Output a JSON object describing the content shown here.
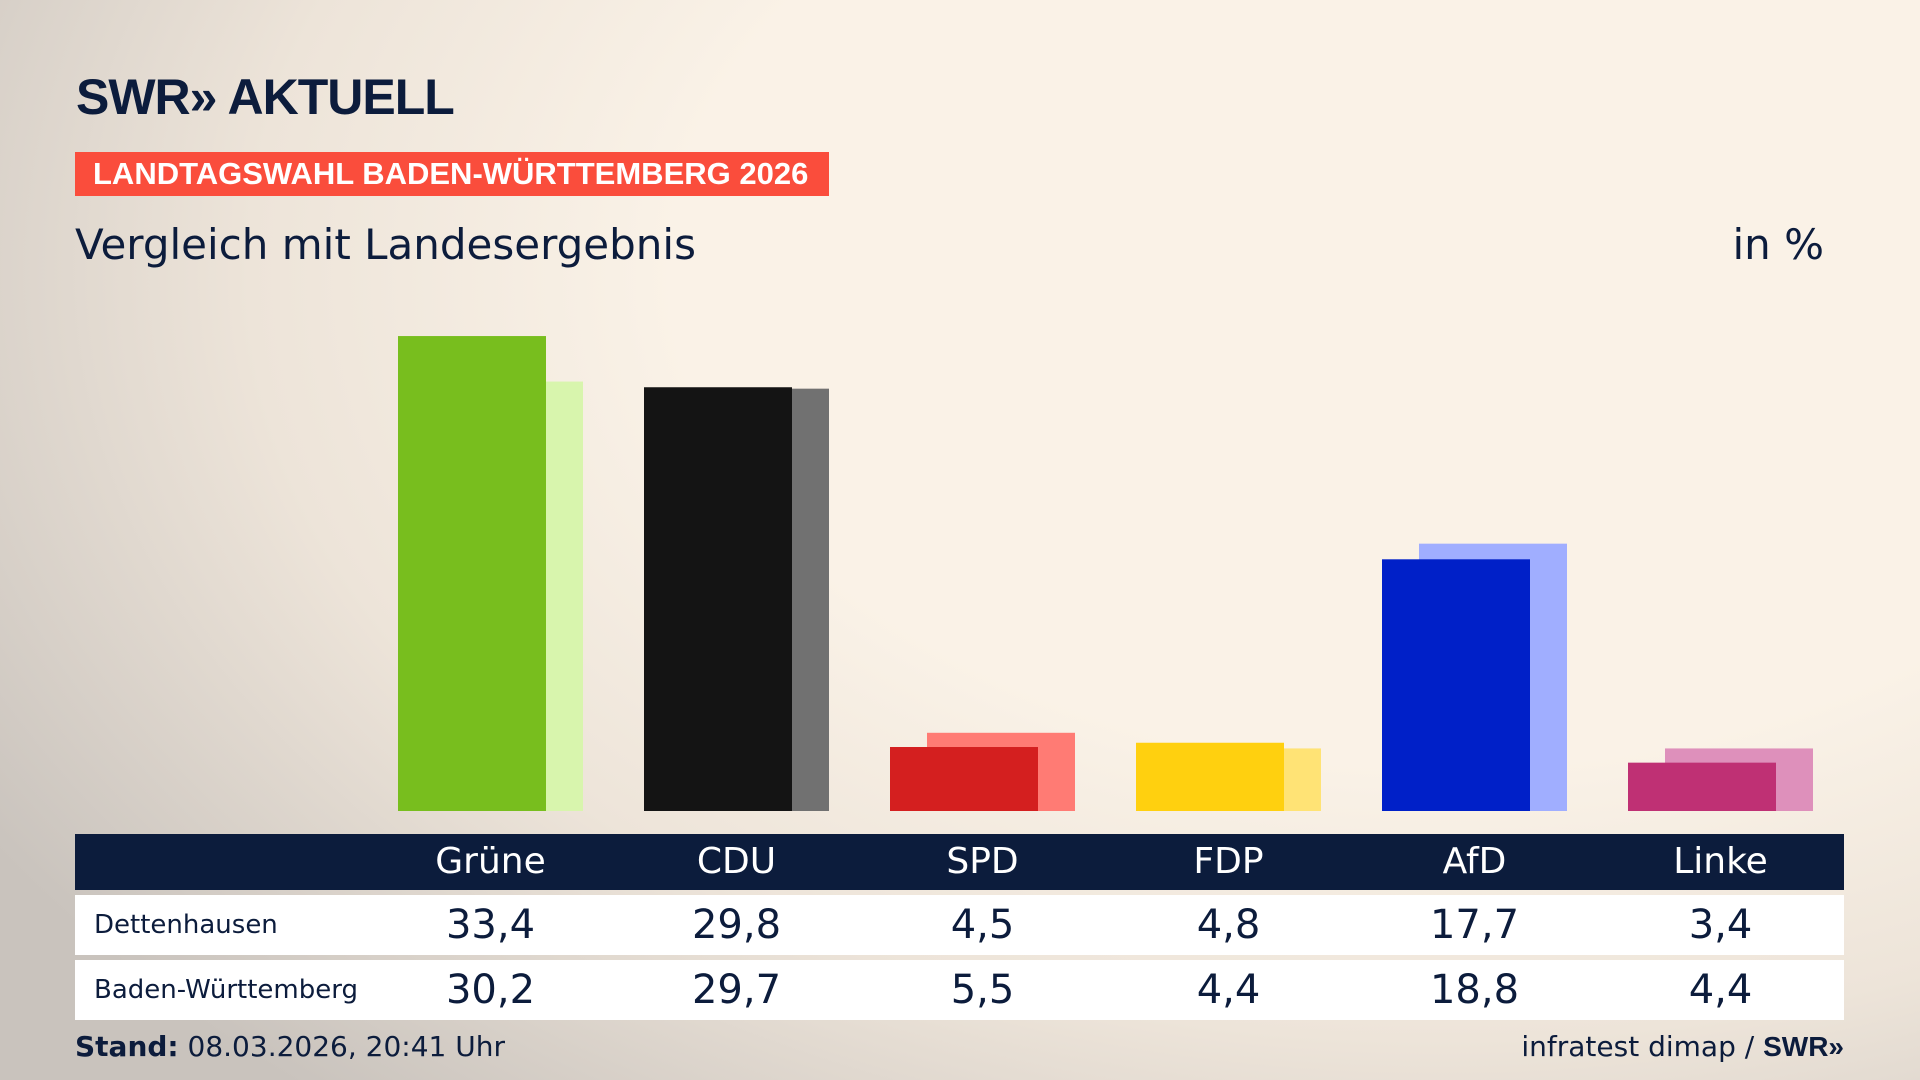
{
  "logo": "SWR» AKTUELL",
  "banner": "LANDTAGSWAHL BADEN-WÜRTTEMBERG 2026",
  "subtitle": "Vergleich mit Landesergebnis",
  "unit": "in %",
  "footer": {
    "stand_label": "Stand:",
    "stand_value": "08.03.2026, 20:41 Uhr",
    "source": "infratest dimap /",
    "source_logo": "SWR»"
  },
  "chart_data": {
    "type": "bar",
    "categories": [
      "Grüne",
      "CDU",
      "SPD",
      "FDP",
      "AfD",
      "Linke"
    ],
    "series": [
      {
        "name": "Dettenhausen",
        "values": [
          33.4,
          29.8,
          4.5,
          4.8,
          17.7,
          3.4
        ],
        "display": [
          "33,4",
          "29,8",
          "4,5",
          "4,8",
          "17,7",
          "3,4"
        ],
        "colors": [
          "#78be1e",
          "#141414",
          "#d41f1f",
          "#ffd00f",
          "#0020c8",
          "#bf3074"
        ]
      },
      {
        "name": "Baden-Württemberg",
        "values": [
          30.2,
          29.7,
          5.5,
          4.4,
          18.8,
          4.4
        ],
        "display": [
          "30,2",
          "29,7",
          "5,5",
          "4,4",
          "18,8",
          "4,4"
        ],
        "colors": [
          "#d8f5ad",
          "#717171",
          "#ff7b74",
          "#ffe375",
          "#a0aeff",
          "#de90bb"
        ]
      }
    ],
    "ylim": [
      0,
      35
    ],
    "grid": false
  }
}
